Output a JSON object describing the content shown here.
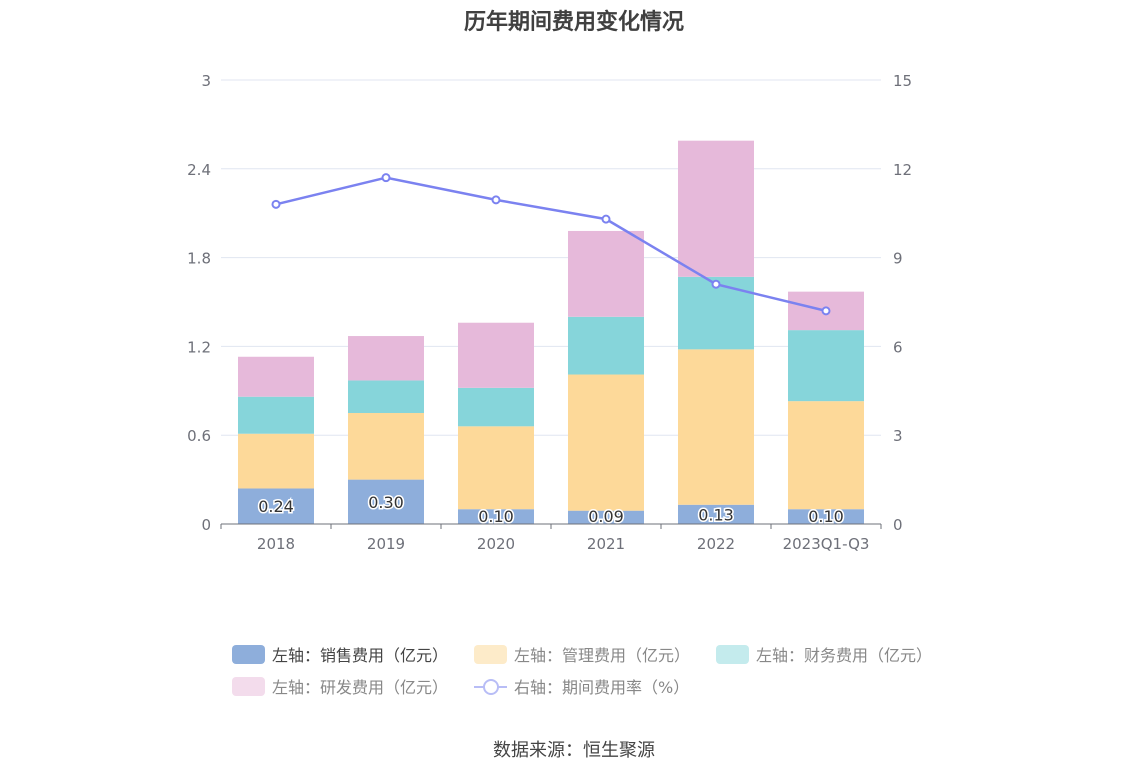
{
  "chart_data": {
    "type": "bar",
    "stacked": true,
    "title": "历年期间费用变化情况",
    "categories": [
      "2018",
      "2019",
      "2020",
      "2021",
      "2022",
      "2023Q1-Q3"
    ],
    "series": [
      {
        "name": "左轴：销售费用（亿元）",
        "axis": "left",
        "color": "#8eaedb",
        "values": [
          0.24,
          0.3,
          0.1,
          0.09,
          0.13,
          0.1
        ],
        "value_labels": [
          "0.24",
          "0.30",
          "0.10",
          "0.09",
          "0.13",
          "0.10"
        ]
      },
      {
        "name": "左轴：管理费用（亿元）",
        "axis": "left",
        "color": "#fdd999",
        "values": [
          0.37,
          0.45,
          0.56,
          0.92,
          1.05,
          0.73
        ]
      },
      {
        "name": "左轴：财务费用（亿元）",
        "axis": "left",
        "color": "#86d5da",
        "values": [
          0.25,
          0.22,
          0.26,
          0.39,
          0.49,
          0.48
        ]
      },
      {
        "name": "左轴：研发费用（亿元）",
        "axis": "left",
        "color": "#e6b9da",
        "values": [
          0.27,
          0.3,
          0.44,
          0.58,
          0.92,
          0.26
        ]
      }
    ],
    "line_series": {
      "name": "右轴：期间费用率（%）",
      "axis": "right",
      "type": "line",
      "color": "#7b82f0",
      "values": [
        10.8,
        11.7,
        10.95,
        10.3,
        8.1,
        7.2
      ]
    },
    "left_axis": {
      "ylim": [
        0,
        3
      ],
      "ticks": [
        "0",
        "0.6",
        "1.2",
        "1.8",
        "2.4",
        "3"
      ]
    },
    "right_axis": {
      "ylim": [
        0,
        15
      ],
      "ticks": [
        "0",
        "3",
        "6",
        "9",
        "12",
        "15"
      ]
    },
    "grid": true,
    "legend_position": "bottom"
  },
  "source_text": "数据来源：恒生聚源"
}
